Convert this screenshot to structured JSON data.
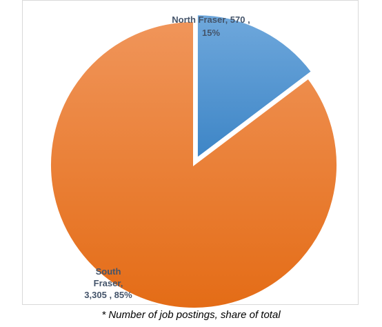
{
  "chart_data": {
    "type": "pie",
    "unit_note": "* Number of job postings, share of total",
    "slices": [
      {
        "name": "North Fraser",
        "value": 570,
        "percent": "15%",
        "label_lines": [
          "North Fraser,  570 ,",
          "15%"
        ],
        "exploded": true,
        "color_light": "#6fa8dc",
        "color_dark": "#3d85c6"
      },
      {
        "name": "South Fraser",
        "value": 3305,
        "percent": "85%",
        "label_lines": [
          "South",
          "Fraser,",
          "3,305 , 85%"
        ],
        "exploded": false,
        "color_light": "#f0955a",
        "color_dark": "#e46c16"
      }
    ],
    "label_color": "#44546a",
    "legend": "none"
  }
}
